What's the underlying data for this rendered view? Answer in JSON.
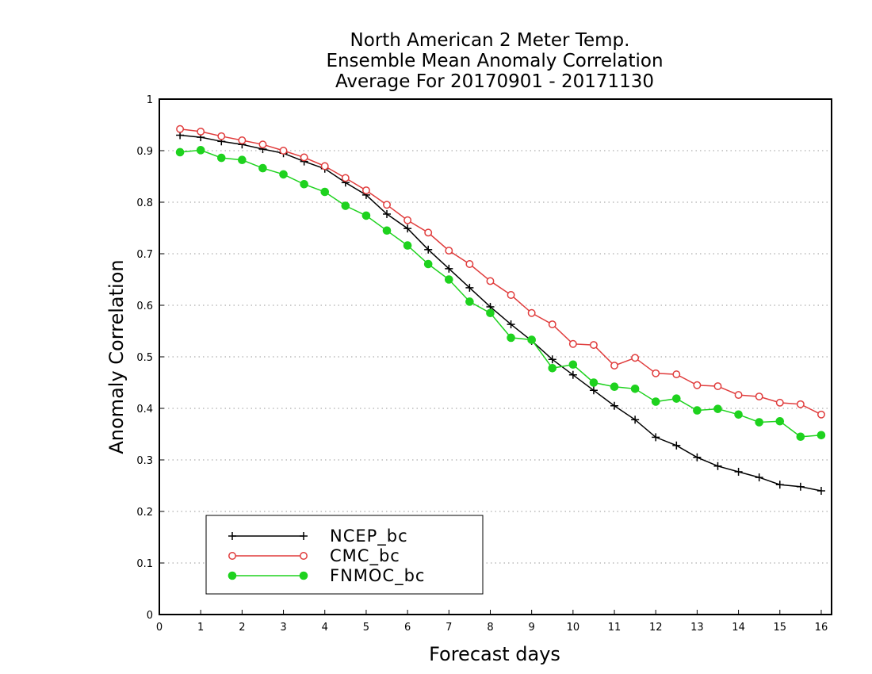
{
  "chart_data": {
    "type": "line",
    "title": [
      "North American 2 Meter Temp.",
      "Ensemble Mean Anomaly Correlation",
      "Average For 20170901 - 20171130"
    ],
    "xlabel": "Forecast days",
    "ylabel": "Anomaly Correlation",
    "xlim": [
      0,
      16.25
    ],
    "ylim": [
      0,
      1
    ],
    "xticks": [
      0,
      1,
      2,
      3,
      4,
      5,
      6,
      7,
      8,
      9,
      10,
      11,
      12,
      13,
      14,
      15,
      16
    ],
    "yticks": [
      0,
      0.1,
      0.2,
      0.3,
      0.4,
      0.5,
      0.6,
      0.7,
      0.8,
      0.9,
      1
    ],
    "ytick_labels": [
      "0",
      "0.1",
      "0.2",
      "0.3",
      "0.4",
      "0.5",
      "0.6",
      "0.7",
      "0.8",
      "0.9",
      "1"
    ],
    "grid": "horizontal-dotted",
    "legend_position": "bottom-left",
    "x": [
      0.5,
      1,
      1.5,
      2,
      2.5,
      3,
      3.5,
      4,
      4.5,
      5,
      5.5,
      6,
      6.5,
      7,
      7.5,
      8,
      8.5,
      9,
      9.5,
      10,
      10.5,
      11,
      11.5,
      12,
      12.5,
      13,
      13.5,
      14,
      14.5,
      15,
      15.5,
      16
    ],
    "series": [
      {
        "name": "NCEP_bc",
        "color": "#000000",
        "marker": "plus",
        "values": [
          0.93,
          0.926,
          0.918,
          0.912,
          0.903,
          0.895,
          0.879,
          0.865,
          0.838,
          0.814,
          0.777,
          0.749,
          0.708,
          0.671,
          0.634,
          0.597,
          0.563,
          0.531,
          0.495,
          0.465,
          0.435,
          0.405,
          0.378,
          0.344,
          0.328,
          0.305,
          0.288,
          0.277,
          0.266,
          0.252,
          0.248,
          0.24
        ]
      },
      {
        "name": "CMC_bc",
        "color": "#e03c3c",
        "marker": "open-circle",
        "values": [
          0.942,
          0.937,
          0.928,
          0.92,
          0.912,
          0.9,
          0.887,
          0.87,
          0.847,
          0.823,
          0.795,
          0.765,
          0.741,
          0.706,
          0.68,
          0.647,
          0.62,
          0.585,
          0.563,
          0.525,
          0.523,
          0.483,
          0.498,
          0.468,
          0.466,
          0.445,
          0.443,
          0.426,
          0.423,
          0.411,
          0.408,
          0.388
        ]
      },
      {
        "name": "FNMOC_bc",
        "color": "#1ed21e",
        "marker": "filled-circle",
        "values": [
          0.897,
          0.901,
          0.886,
          0.882,
          0.866,
          0.854,
          0.835,
          0.82,
          0.793,
          0.774,
          0.745,
          0.716,
          0.68,
          0.65,
          0.607,
          0.585,
          0.537,
          0.533,
          0.478,
          0.485,
          0.45,
          0.442,
          0.438,
          0.413,
          0.419,
          0.396,
          0.399,
          0.388,
          0.373,
          0.375,
          0.345,
          0.348
        ]
      }
    ]
  }
}
